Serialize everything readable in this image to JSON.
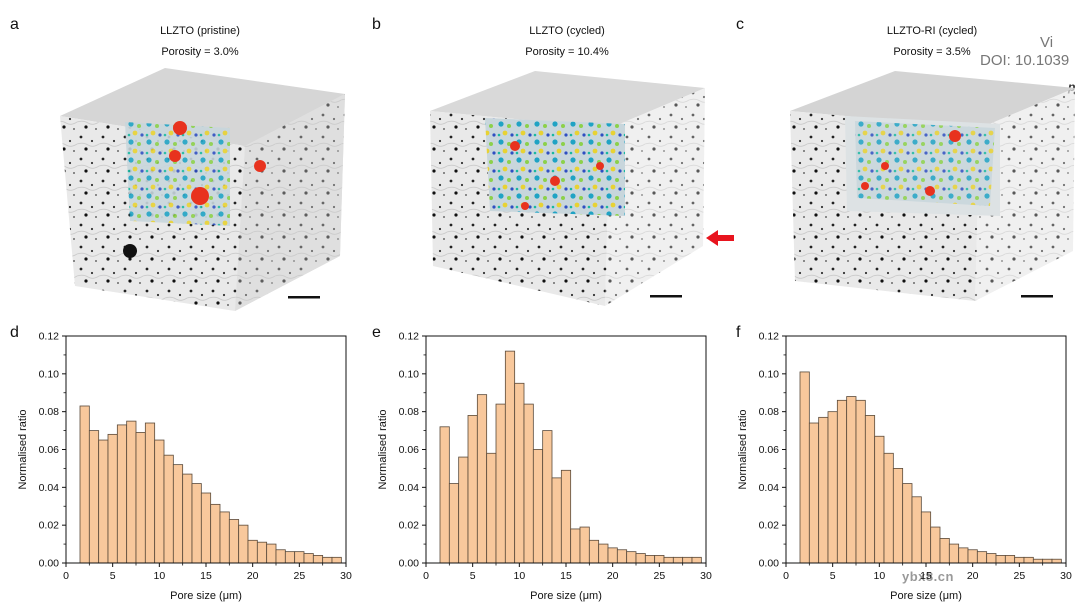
{
  "panels_top": [
    {
      "letter": "a",
      "title": "LLZTO (pristine)",
      "porosity": "Porosity = 3.0%"
    },
    {
      "letter": "b",
      "title": "LLZTO (cycled)",
      "porosity": "Porosity = 10.4%"
    },
    {
      "letter": "c",
      "title": "LLZTO-RI (cycled)",
      "porosity": "Porosity = 3.5%"
    }
  ],
  "watermark": {
    "line1": "Vi",
    "line2": "DOI: 10.1039",
    "line3": "p",
    "site": "ybx8.cn"
  },
  "colors": {
    "bar_fill": "#f8c89c",
    "bar_stroke": "#5a4a3a",
    "arrow": "#e8141e"
  },
  "chart_data": [
    {
      "letter": "d",
      "type": "bar",
      "xlabel": "Pore size (μm)",
      "ylabel": "Normalised ratio",
      "xlim": [
        0,
        30
      ],
      "ylim": [
        0,
        0.12
      ],
      "xticks": [
        0,
        5,
        10,
        15,
        20,
        25,
        30
      ],
      "yticks": [
        "0.00",
        "0.02",
        "0.04",
        "0.06",
        "0.08",
        "0.10",
        "0.12"
      ],
      "bin_width": 1,
      "x": [
        2,
        3,
        4,
        5,
        6,
        7,
        8,
        9,
        10,
        11,
        12,
        13,
        14,
        15,
        16,
        17,
        18,
        19,
        20,
        21,
        22,
        23,
        24,
        25,
        26,
        27,
        28,
        29
      ],
      "values": [
        0.083,
        0.07,
        0.065,
        0.068,
        0.073,
        0.075,
        0.069,
        0.074,
        0.065,
        0.057,
        0.052,
        0.047,
        0.042,
        0.037,
        0.031,
        0.027,
        0.023,
        0.02,
        0.012,
        0.011,
        0.01,
        0.007,
        0.006,
        0.006,
        0.005,
        0.004,
        0.003,
        0.003
      ]
    },
    {
      "letter": "e",
      "type": "bar",
      "xlabel": "Pore size (μm)",
      "ylabel": "Normalised ratio",
      "xlim": [
        0,
        30
      ],
      "ylim": [
        0,
        0.12
      ],
      "xticks": [
        0,
        5,
        10,
        15,
        20,
        25,
        30
      ],
      "yticks": [
        "0.00",
        "0.02",
        "0.04",
        "0.06",
        "0.08",
        "0.10",
        "0.12"
      ],
      "bin_width": 1,
      "x": [
        2,
        3,
        4,
        5,
        6,
        7,
        8,
        9,
        10,
        11,
        12,
        13,
        14,
        15,
        16,
        17,
        18,
        19,
        20,
        21,
        22,
        23,
        24,
        25,
        26,
        27,
        28,
        29
      ],
      "values": [
        0.072,
        0.042,
        0.056,
        0.078,
        0.089,
        0.058,
        0.084,
        0.112,
        0.095,
        0.084,
        0.06,
        0.07,
        0.045,
        0.049,
        0.018,
        0.019,
        0.012,
        0.01,
        0.008,
        0.007,
        0.006,
        0.005,
        0.004,
        0.004,
        0.003,
        0.003,
        0.003,
        0.003
      ]
    },
    {
      "letter": "f",
      "type": "bar",
      "xlabel": "Pore size (μm)",
      "ylabel": "Normalised ratio",
      "xlim": [
        0,
        30
      ],
      "ylim": [
        0,
        0.12
      ],
      "xticks": [
        0,
        5,
        10,
        15,
        20,
        25,
        30
      ],
      "yticks": [
        "0.00",
        "0.02",
        "0.04",
        "0.06",
        "0.08",
        "0.10",
        "0.12"
      ],
      "bin_width": 1,
      "x": [
        2,
        3,
        4,
        5,
        6,
        7,
        8,
        9,
        10,
        11,
        12,
        13,
        14,
        15,
        16,
        17,
        18,
        19,
        20,
        21,
        22,
        23,
        24,
        25,
        26,
        27,
        28,
        29
      ],
      "values": [
        0.101,
        0.074,
        0.077,
        0.08,
        0.086,
        0.088,
        0.086,
        0.078,
        0.067,
        0.058,
        0.05,
        0.042,
        0.035,
        0.027,
        0.019,
        0.013,
        0.01,
        0.008,
        0.007,
        0.006,
        0.005,
        0.004,
        0.004,
        0.003,
        0.003,
        0.002,
        0.002,
        0.002
      ]
    }
  ]
}
